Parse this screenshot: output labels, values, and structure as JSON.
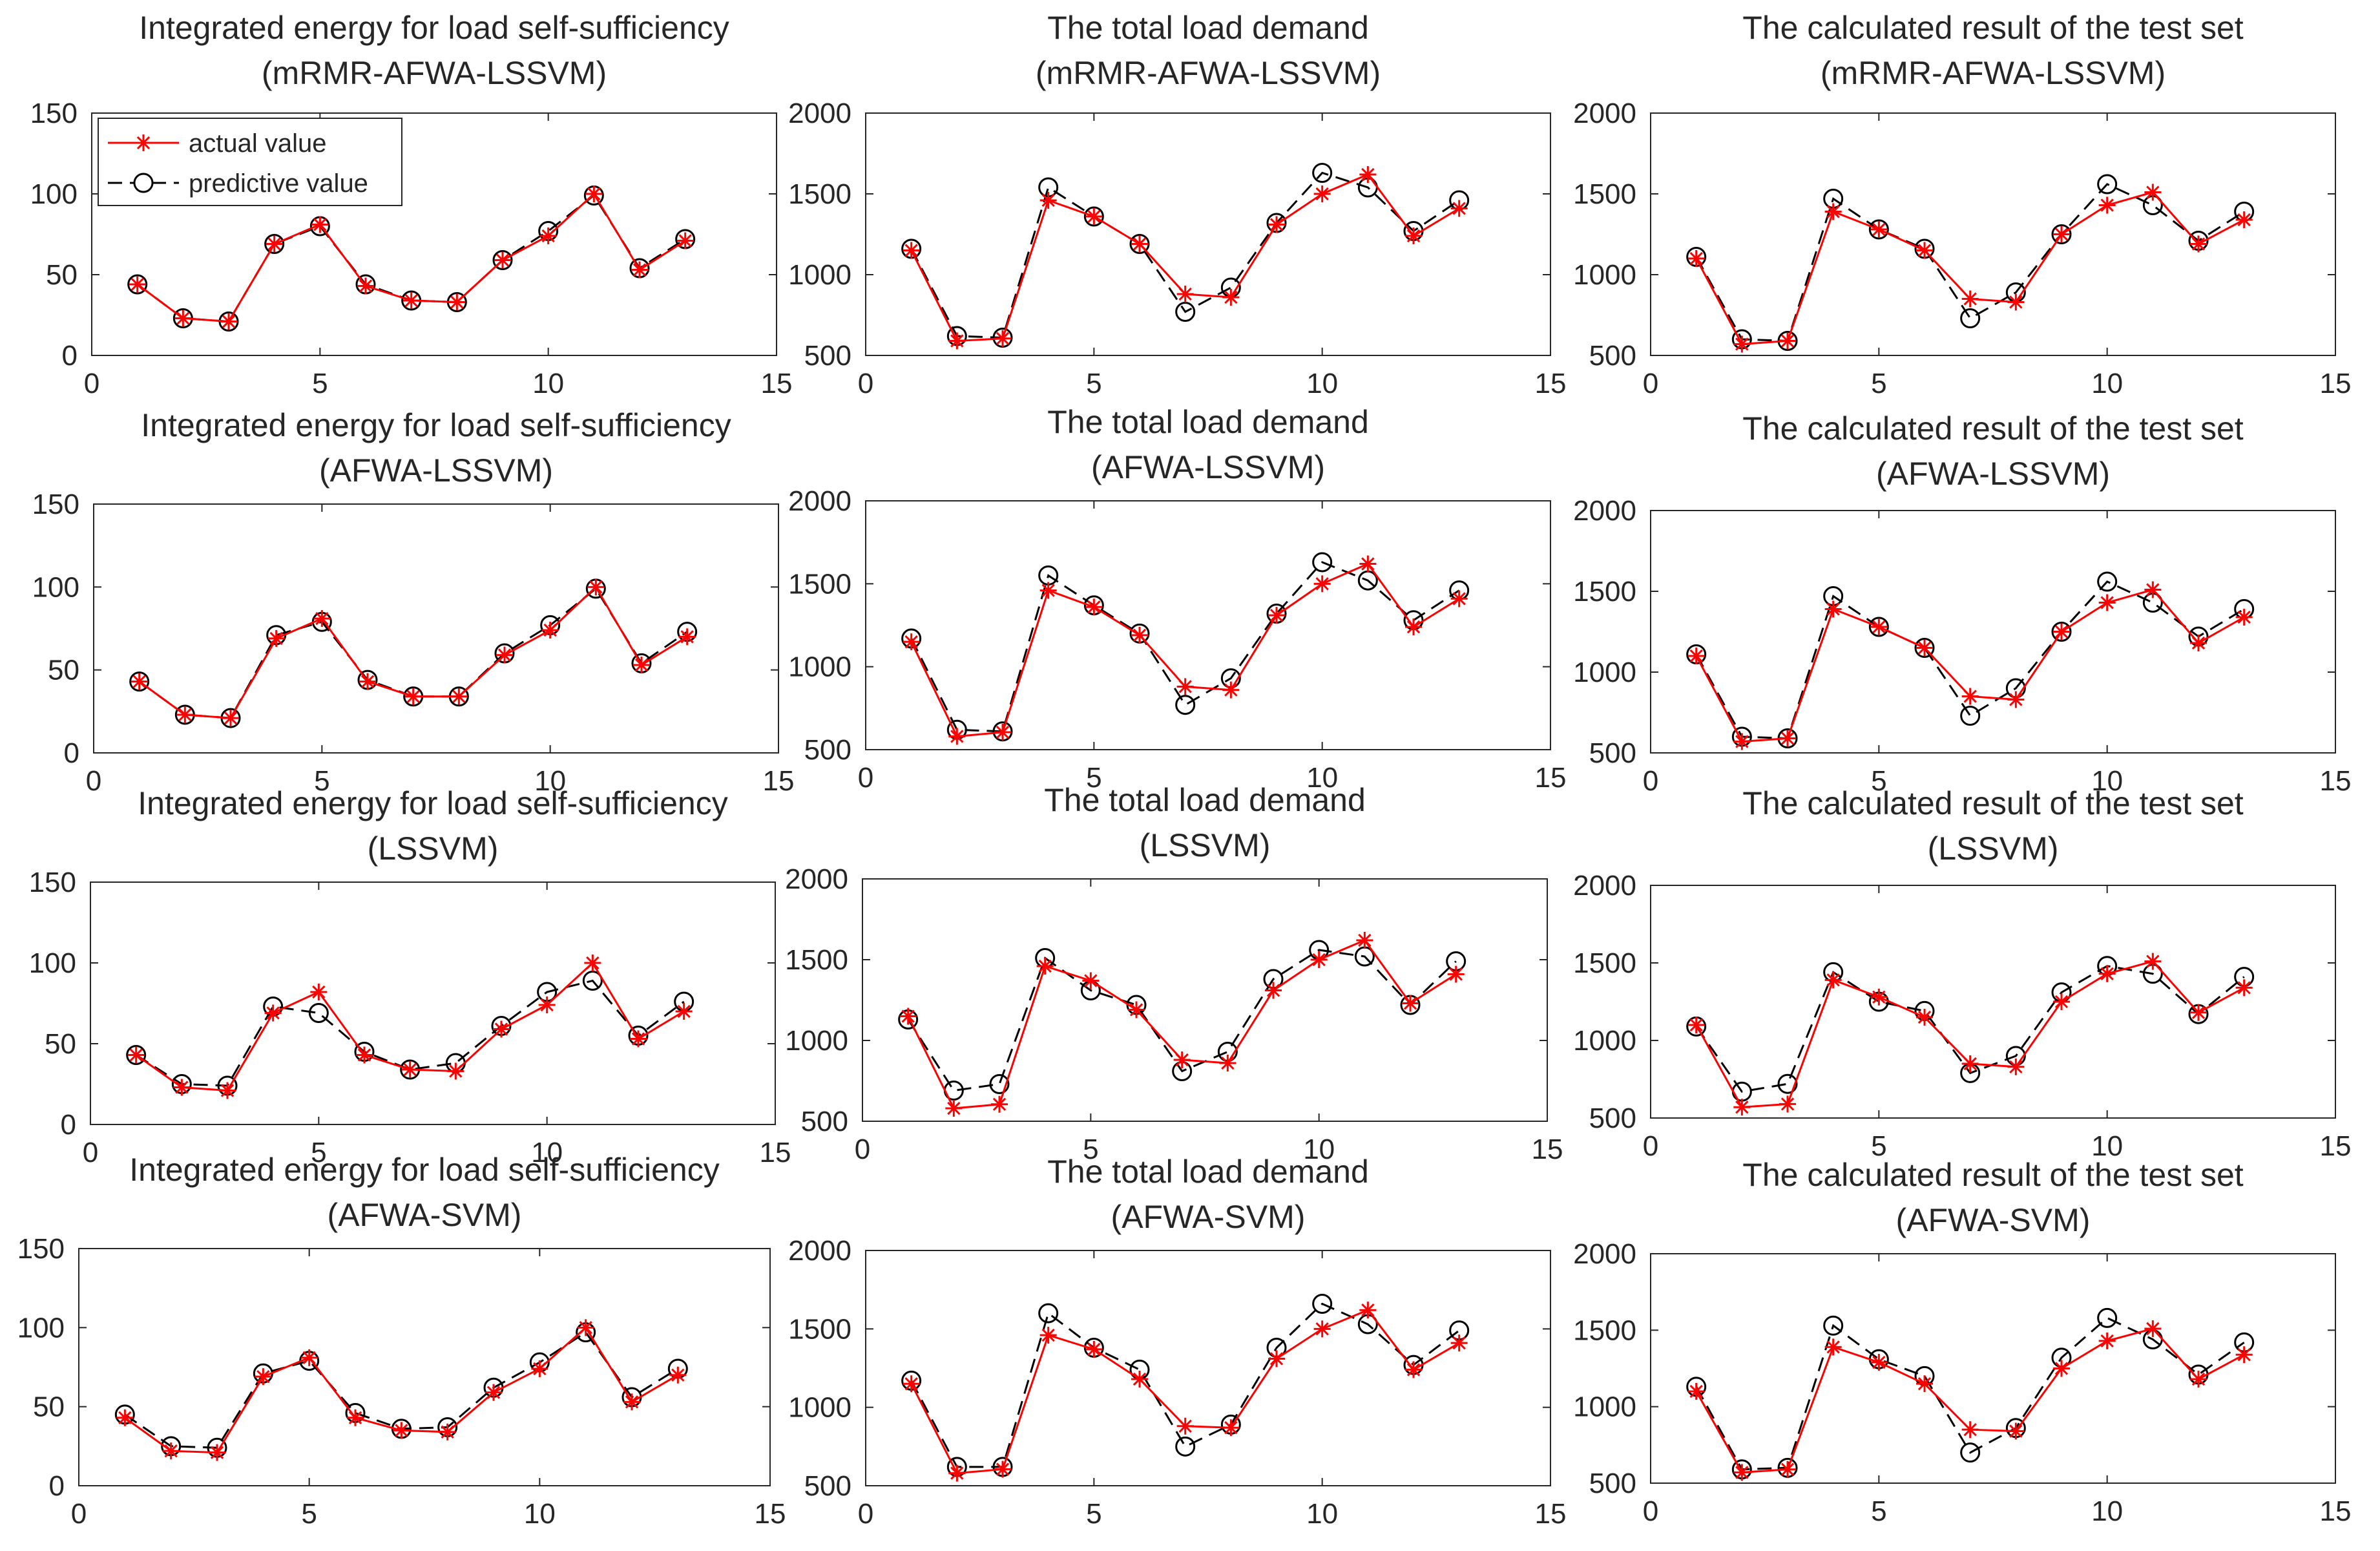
{
  "chart_data": [
    {
      "type": "line",
      "title": [
        "Integrated energy for load self-sufficiency",
        "(mRMR-AFWA-LSSVM)"
      ],
      "xlim": [
        0,
        15
      ],
      "ylim": [
        0,
        150
      ],
      "xticks": [
        "0",
        "5",
        "10",
        "15"
      ],
      "yticks": [
        "0",
        "50",
        "100",
        "150"
      ],
      "legend": {
        "placement": "top-left",
        "entries": [
          "actual value",
          "predictive value"
        ]
      },
      "x": [
        1,
        2,
        3,
        4,
        5,
        6,
        7,
        8,
        9,
        10,
        11,
        12,
        13
      ],
      "series": [
        {
          "name": "actual value",
          "color": "#ff0000",
          "marker": "asterisk",
          "values": [
            44,
            23,
            21,
            69,
            81,
            43,
            34,
            33,
            59,
            74,
            100,
            53,
            71
          ]
        },
        {
          "name": "predictive value",
          "color": "#000000",
          "marker": "circle",
          "values": [
            44,
            23,
            21,
            69,
            80,
            44,
            34,
            33,
            59,
            77,
            99,
            54,
            72
          ]
        }
      ]
    },
    {
      "type": "line",
      "title": [
        "The total load demand",
        "(mRMR-AFWA-LSSVM)"
      ],
      "xlim": [
        0,
        15
      ],
      "ylim": [
        500,
        2000
      ],
      "xticks": [
        "0",
        "5",
        "10",
        "15"
      ],
      "yticks": [
        "500",
        "1000",
        "1500",
        "2000"
      ],
      "x": [
        1,
        2,
        3,
        4,
        5,
        6,
        7,
        8,
        9,
        10,
        11,
        12,
        13
      ],
      "series": [
        {
          "name": "actual value",
          "color": "#ff0000",
          "marker": "asterisk",
          "values": [
            1150,
            590,
            605,
            1460,
            1360,
            1190,
            880,
            860,
            1310,
            1500,
            1620,
            1240,
            1410
          ]
        },
        {
          "name": "predictive value",
          "color": "#000000",
          "marker": "circle",
          "values": [
            1160,
            620,
            610,
            1540,
            1360,
            1190,
            770,
            920,
            1320,
            1630,
            1540,
            1270,
            1460
          ]
        }
      ]
    },
    {
      "type": "line",
      "title": [
        "The calculated result of the test set",
        "(mRMR-AFWA-LSSVM)"
      ],
      "xlim": [
        0,
        15
      ],
      "ylim": [
        500,
        2000
      ],
      "xticks": [
        "0",
        "5",
        "10",
        "15"
      ],
      "yticks": [
        "500",
        "1000",
        "1500",
        "2000"
      ],
      "x": [
        1,
        2,
        3,
        4,
        5,
        6,
        7,
        8,
        9,
        10,
        11,
        12,
        13
      ],
      "series": [
        {
          "name": "actual value",
          "color": "#ff0000",
          "marker": "asterisk",
          "values": [
            1100,
            570,
            590,
            1390,
            1280,
            1150,
            850,
            830,
            1250,
            1430,
            1510,
            1190,
            1340
          ]
        },
        {
          "name": "predictive value",
          "color": "#000000",
          "marker": "circle",
          "values": [
            1110,
            600,
            590,
            1470,
            1280,
            1160,
            730,
            890,
            1250,
            1560,
            1430,
            1210,
            1390
          ]
        }
      ]
    },
    {
      "type": "line",
      "title": [
        "Integrated energy for load self-sufficiency",
        "(AFWA-LSSVM)"
      ],
      "xlim": [
        0,
        15
      ],
      "ylim": [
        0,
        150
      ],
      "xticks": [
        "0",
        "5",
        "10",
        "15"
      ],
      "yticks": [
        "0",
        "50",
        "100",
        "150"
      ],
      "x": [
        1,
        2,
        3,
        4,
        5,
        6,
        7,
        8,
        9,
        10,
        11,
        12,
        13
      ],
      "series": [
        {
          "name": "actual value",
          "color": "#ff0000",
          "marker": "asterisk",
          "values": [
            43,
            23,
            21,
            69,
            81,
            43,
            34,
            34,
            59,
            74,
            100,
            53,
            70
          ]
        },
        {
          "name": "predictive value",
          "color": "#000000",
          "marker": "circle",
          "values": [
            43,
            23,
            21,
            71,
            79,
            44,
            34,
            34,
            60,
            77,
            99,
            54,
            73
          ]
        }
      ]
    },
    {
      "type": "line",
      "title": [
        "The total load demand",
        "(AFWA-LSSVM)"
      ],
      "xlim": [
        0,
        15
      ],
      "ylim": [
        500,
        2000
      ],
      "xticks": [
        "0",
        "5",
        "10",
        "15"
      ],
      "yticks": [
        "500",
        "1000",
        "1500",
        "2000"
      ],
      "x": [
        1,
        2,
        3,
        4,
        5,
        6,
        7,
        8,
        9,
        10,
        11,
        12,
        13
      ],
      "series": [
        {
          "name": "actual value",
          "color": "#ff0000",
          "marker": "asterisk",
          "values": [
            1150,
            580,
            605,
            1460,
            1360,
            1190,
            880,
            860,
            1310,
            1500,
            1620,
            1240,
            1410
          ]
        },
        {
          "name": "predictive value",
          "color": "#000000",
          "marker": "circle",
          "values": [
            1170,
            620,
            610,
            1550,
            1370,
            1200,
            770,
            930,
            1320,
            1630,
            1520,
            1280,
            1460
          ]
        }
      ]
    },
    {
      "type": "line",
      "title": [
        "The calculated result of the test set",
        "(AFWA-LSSVM)"
      ],
      "xlim": [
        0,
        15
      ],
      "ylim": [
        500,
        2000
      ],
      "xticks": [
        "0",
        "5",
        "10",
        "15"
      ],
      "yticks": [
        "500",
        "1000",
        "1500",
        "2000"
      ],
      "x": [
        1,
        2,
        3,
        4,
        5,
        6,
        7,
        8,
        9,
        10,
        11,
        12,
        13
      ],
      "series": [
        {
          "name": "actual value",
          "color": "#ff0000",
          "marker": "asterisk",
          "values": [
            1100,
            570,
            590,
            1390,
            1280,
            1150,
            850,
            830,
            1250,
            1430,
            1510,
            1180,
            1340
          ]
        },
        {
          "name": "predictive value",
          "color": "#000000",
          "marker": "circle",
          "values": [
            1110,
            600,
            590,
            1470,
            1280,
            1150,
            730,
            900,
            1250,
            1560,
            1430,
            1220,
            1390
          ]
        }
      ]
    },
    {
      "type": "line",
      "title": [
        "Integrated energy for load self-sufficiency",
        "(LSSVM)"
      ],
      "xlim": [
        0,
        15
      ],
      "ylim": [
        0,
        150
      ],
      "xticks": [
        "0",
        "5",
        "10",
        "15"
      ],
      "yticks": [
        "0",
        "50",
        "100",
        "150"
      ],
      "x": [
        1,
        2,
        3,
        4,
        5,
        6,
        7,
        8,
        9,
        10,
        11,
        12,
        13
      ],
      "series": [
        {
          "name": "actual value",
          "color": "#ff0000",
          "marker": "asterisk",
          "values": [
            43,
            23,
            21,
            69,
            82,
            43,
            34,
            33,
            59,
            74,
            100,
            53,
            70
          ]
        },
        {
          "name": "predictive value",
          "color": "#000000",
          "marker": "circle",
          "values": [
            43,
            25,
            24,
            73,
            69,
            45,
            34,
            38,
            61,
            82,
            89,
            55,
            76
          ]
        }
      ]
    },
    {
      "type": "line",
      "title": [
        "The total load demand",
        "(LSSVM)"
      ],
      "xlim": [
        0,
        15
      ],
      "ylim": [
        500,
        2000
      ],
      "xticks": [
        "0",
        "5",
        "10",
        "15"
      ],
      "yticks": [
        "500",
        "1000",
        "1500",
        "2000"
      ],
      "x": [
        1,
        2,
        3,
        4,
        5,
        6,
        7,
        8,
        9,
        10,
        11,
        12,
        13
      ],
      "series": [
        {
          "name": "actual value",
          "color": "#ff0000",
          "marker": "asterisk",
          "values": [
            1150,
            580,
            605,
            1460,
            1370,
            1190,
            880,
            860,
            1310,
            1500,
            1620,
            1230,
            1410
          ]
        },
        {
          "name": "predictive value",
          "color": "#000000",
          "marker": "circle",
          "values": [
            1130,
            690,
            730,
            1510,
            1310,
            1220,
            810,
            930,
            1380,
            1560,
            1520,
            1220,
            1490
          ]
        }
      ]
    },
    {
      "type": "line",
      "title": [
        "The calculated result of the test set",
        "(LSSVM)"
      ],
      "xlim": [
        0,
        15
      ],
      "ylim": [
        500,
        2000
      ],
      "xticks": [
        "0",
        "5",
        "10",
        "15"
      ],
      "yticks": [
        "500",
        "1000",
        "1500",
        "2000"
      ],
      "x": [
        1,
        2,
        3,
        4,
        5,
        6,
        7,
        8,
        9,
        10,
        11,
        12,
        13
      ],
      "series": [
        {
          "name": "actual value",
          "color": "#ff0000",
          "marker": "asterisk",
          "values": [
            1100,
            570,
            590,
            1390,
            1280,
            1150,
            850,
            830,
            1250,
            1430,
            1510,
            1180,
            1340
          ]
        },
        {
          "name": "predictive value",
          "color": "#000000",
          "marker": "circle",
          "values": [
            1090,
            670,
            720,
            1440,
            1250,
            1190,
            790,
            900,
            1310,
            1480,
            1430,
            1170,
            1410
          ]
        }
      ]
    },
    {
      "type": "line",
      "title": [
        "Integrated energy for load self-sufficiency",
        "(AFWA-SVM)"
      ],
      "xlim": [
        0,
        15
      ],
      "ylim": [
        0,
        150
      ],
      "xticks": [
        "0",
        "5",
        "10",
        "15"
      ],
      "yticks": [
        "0",
        "50",
        "100",
        "150"
      ],
      "x": [
        1,
        2,
        3,
        4,
        5,
        6,
        7,
        8,
        9,
        10,
        11,
        12,
        13
      ],
      "series": [
        {
          "name": "actual value",
          "color": "#ff0000",
          "marker": "asterisk",
          "values": [
            43,
            22,
            21,
            69,
            81,
            43,
            35,
            34,
            59,
            74,
            100,
            53,
            70
          ]
        },
        {
          "name": "predictive value",
          "color": "#000000",
          "marker": "circle",
          "values": [
            45,
            25,
            24,
            71,
            79,
            46,
            36,
            37,
            62,
            78,
            97,
            56,
            74
          ]
        }
      ]
    },
    {
      "type": "line",
      "title": [
        "The total load demand",
        "(AFWA-SVM)"
      ],
      "xlim": [
        0,
        15
      ],
      "ylim": [
        500,
        2000
      ],
      "xticks": [
        "0",
        "5",
        "10",
        "15"
      ],
      "yticks": [
        "500",
        "1000",
        "1500",
        "2000"
      ],
      "x": [
        1,
        2,
        3,
        4,
        5,
        6,
        7,
        8,
        9,
        10,
        11,
        12,
        13
      ],
      "series": [
        {
          "name": "actual value",
          "color": "#ff0000",
          "marker": "asterisk",
          "values": [
            1150,
            580,
            605,
            1460,
            1370,
            1180,
            880,
            870,
            1310,
            1500,
            1620,
            1240,
            1410
          ]
        },
        {
          "name": "predictive value",
          "color": "#000000",
          "marker": "circle",
          "values": [
            1170,
            620,
            620,
            1600,
            1380,
            1240,
            750,
            890,
            1380,
            1660,
            1530,
            1270,
            1490
          ]
        }
      ]
    },
    {
      "type": "line",
      "title": [
        "The calculated result of the test set",
        "(AFWA-SVM)"
      ],
      "xlim": [
        0,
        15
      ],
      "ylim": [
        500,
        2000
      ],
      "xticks": [
        "0",
        "5",
        "10",
        "15"
      ],
      "yticks": [
        "500",
        "1000",
        "1500",
        "2000"
      ],
      "x": [
        1,
        2,
        3,
        4,
        5,
        6,
        7,
        8,
        9,
        10,
        11,
        12,
        13
      ],
      "series": [
        {
          "name": "actual value",
          "color": "#ff0000",
          "marker": "asterisk",
          "values": [
            1100,
            570,
            590,
            1390,
            1290,
            1150,
            850,
            840,
            1250,
            1430,
            1510,
            1180,
            1340
          ]
        },
        {
          "name": "predictive value",
          "color": "#000000",
          "marker": "circle",
          "values": [
            1130,
            590,
            600,
            1530,
            1310,
            1200,
            700,
            860,
            1320,
            1580,
            1440,
            1210,
            1420
          ]
        }
      ]
    }
  ]
}
